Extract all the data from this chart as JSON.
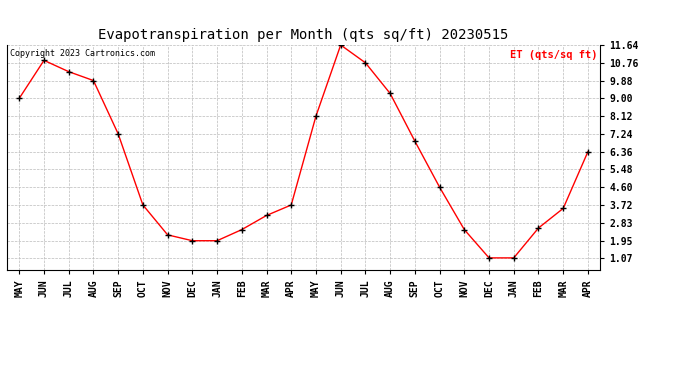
{
  "title": "Evapotranspiration per Month (qts sq/ft) 20230515",
  "copyright": "Copyright 2023 Cartronics.com",
  "legend_label": "ET (qts/sq ft)",
  "x_labels": [
    "MAY",
    "JUN",
    "JUL",
    "AUG",
    "SEP",
    "OCT",
    "NOV",
    "DEC",
    "JAN",
    "FEB",
    "MAR",
    "APR",
    "MAY",
    "JUN",
    "JUL",
    "AUG",
    "SEP",
    "OCT",
    "NOV",
    "DEC",
    "JAN",
    "FEB",
    "MAR",
    "APR"
  ],
  "y_values": [
    9.0,
    10.88,
    10.32,
    9.88,
    7.24,
    3.72,
    2.24,
    1.95,
    1.95,
    2.5,
    3.2,
    3.72,
    8.12,
    11.64,
    10.76,
    9.24,
    6.88,
    4.6,
    2.5,
    1.1,
    1.1,
    2.58,
    3.55,
    6.36
  ],
  "y_ticks": [
    1.07,
    1.95,
    2.83,
    3.72,
    4.6,
    5.48,
    6.36,
    7.24,
    8.12,
    9.0,
    9.88,
    10.76,
    11.64
  ],
  "y_min": 0.5,
  "y_max": 11.64,
  "line_color": "red",
  "marker_color": "black",
  "marker": "+",
  "grid_color": "#bbbbbb",
  "background_color": "white",
  "title_fontsize": 10,
  "copyright_color": "black",
  "copyright_fontsize": 6,
  "legend_color": "red",
  "legend_fontsize": 7.5,
  "tick_fontsize": 7,
  "border_color": "black"
}
